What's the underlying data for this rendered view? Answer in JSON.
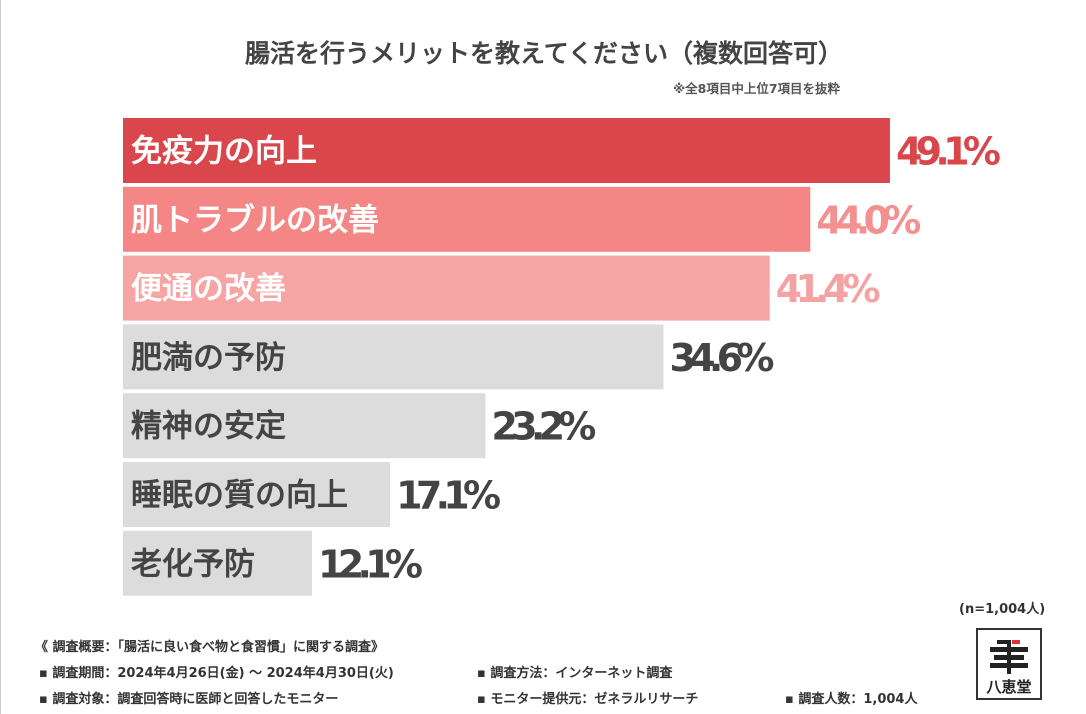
{
  "chart_data": {
    "type": "bar",
    "orientation": "horizontal",
    "title": "腸活を行うメリットを教えてください（複数回答可）",
    "subtitle": "※全8項目中上位7項目を抜粋",
    "categories": [
      "免疫力の向上",
      "肌トラブルの改善",
      "便通の改善",
      "肥満の予防",
      "精神の安定",
      "睡眠の質の向上",
      "老化予防"
    ],
    "values": [
      49.1,
      44.0,
      41.4,
      34.6,
      23.2,
      17.1,
      12.1
    ],
    "value_labels": [
      "49.1%",
      "44.0%",
      "41.4%",
      "34.6%",
      "23.2%",
      "17.1%",
      "12.1%"
    ],
    "unit": "%",
    "xlim": [
      0,
      55
    ],
    "bar_colors": [
      "#d9464b",
      "#f58686",
      "#f7a4a4",
      "#dcdcdc",
      "#dcdcdc",
      "#dcdcdc",
      "#dcdcdc"
    ],
    "label_colors": [
      "#ffffff",
      "#ffffff",
      "#ffffff",
      "#444444",
      "#444444",
      "#444444",
      "#444444"
    ],
    "value_colors": [
      "#d9464b",
      "#f39090",
      "#f4a2a2",
      "#444444",
      "#444444",
      "#444444",
      "#444444"
    ],
    "n_label": "(n=1,004人)"
  },
  "footer": {
    "heading": "《 調査概要：「腸活に良い食べ物と食習慣」に関する調査》",
    "period": "▪ 調査期間：2024年4月26日(金) ～ 2024年4月30日(火)",
    "method": "▪ 調査方法：インターネット調査",
    "target": "▪ 調査対象：調査回答時に医師と回答したモニター",
    "provider": "▪ モニター提供元：ゼネラルリサーチ",
    "count": "▪ 調査人数：1,004人"
  },
  "logo": {
    "text": "八恵堂"
  }
}
